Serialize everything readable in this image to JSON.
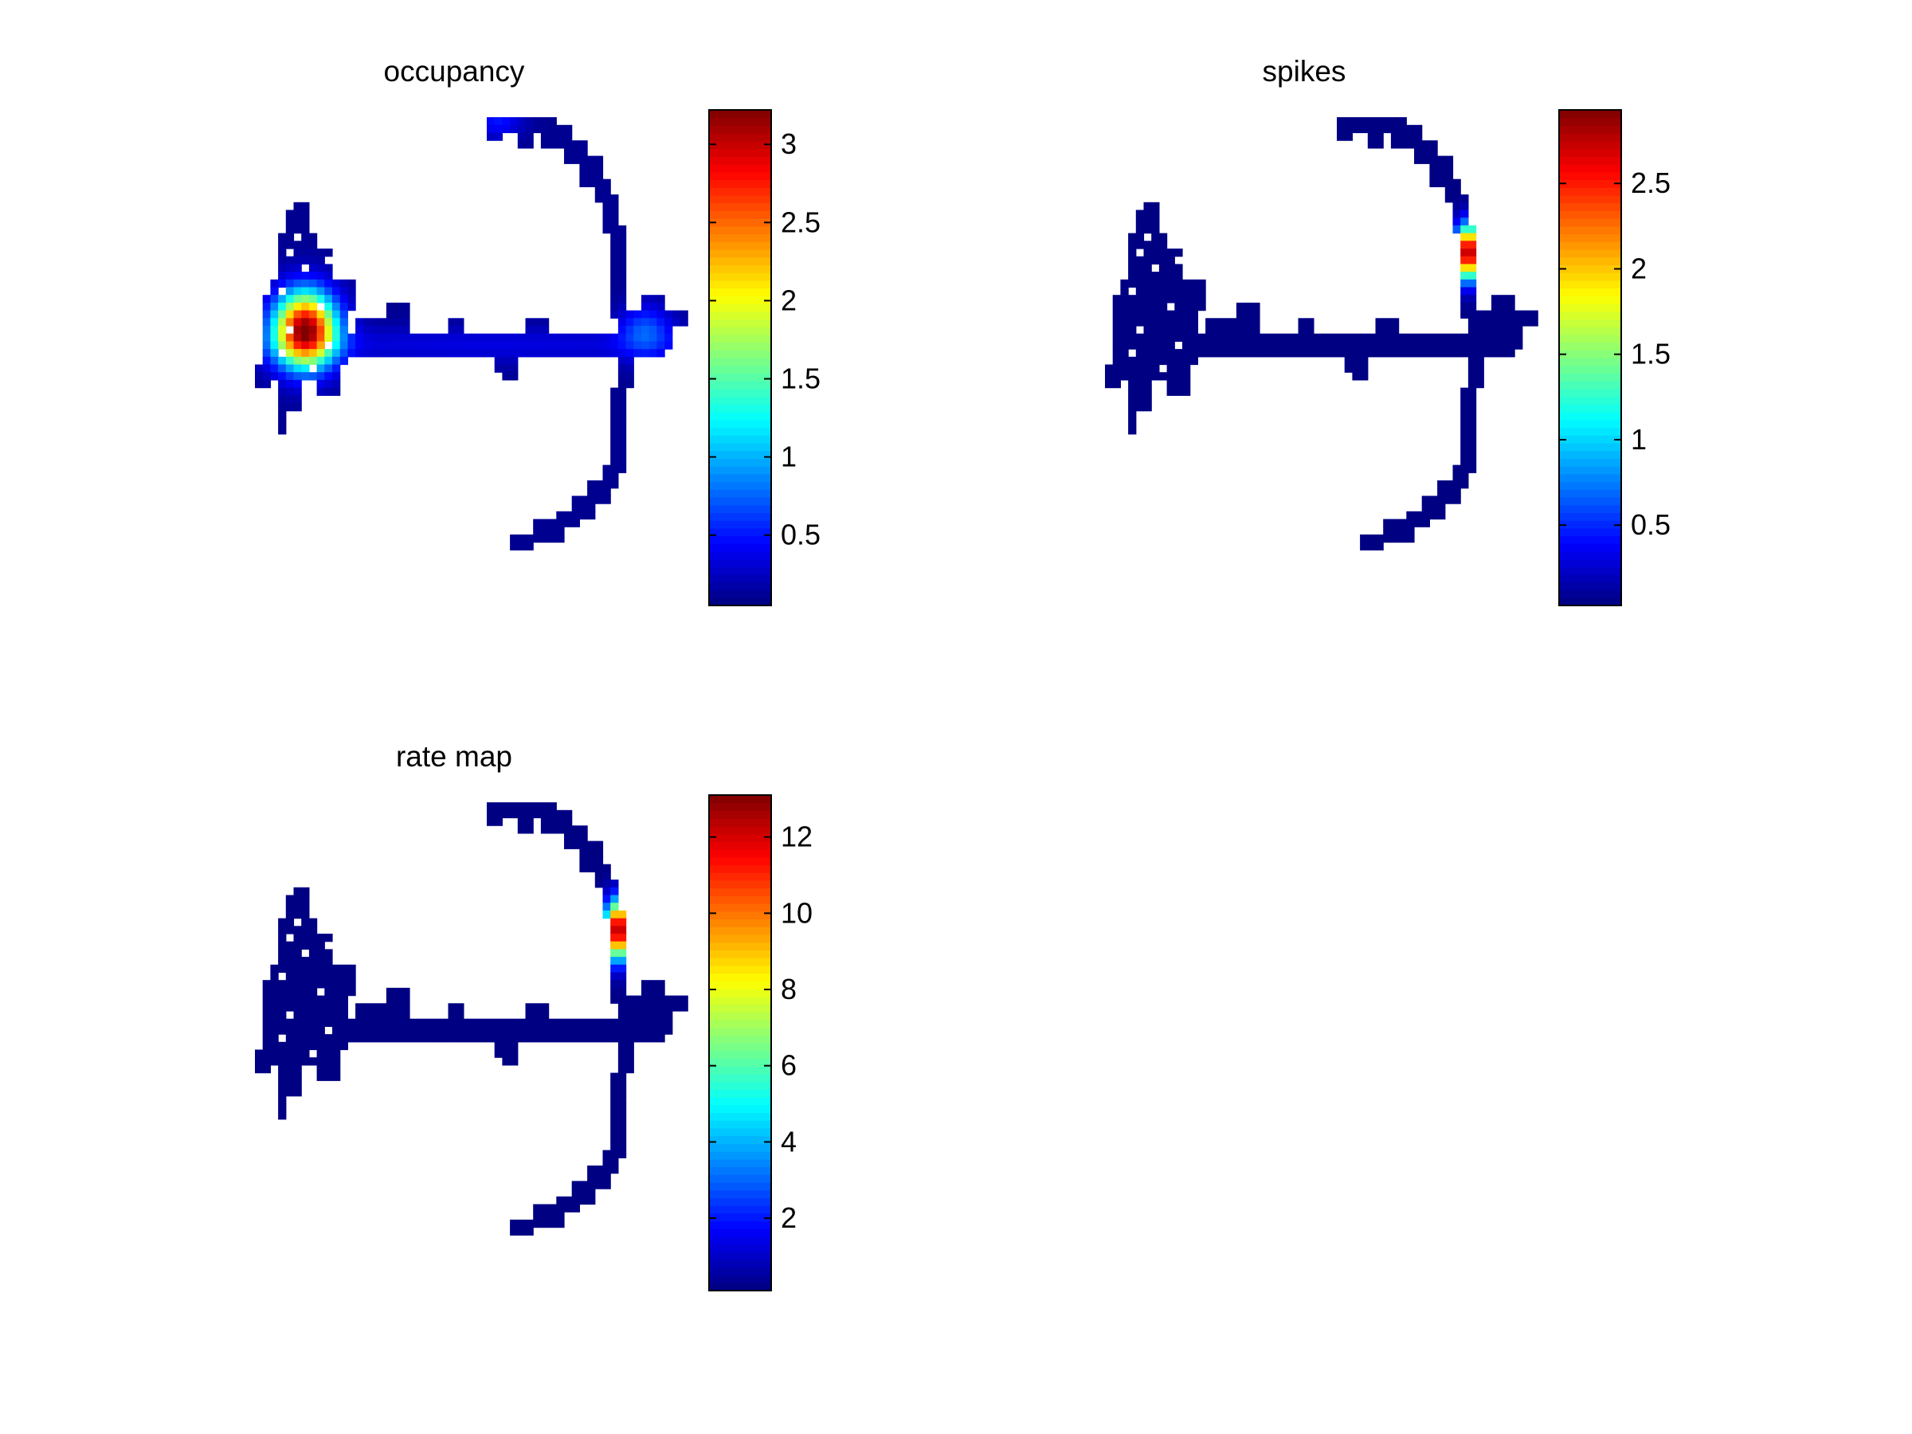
{
  "chart_data": [
    {
      "type": "heatmap",
      "title": "occupancy",
      "colormap": "jet",
      "axes_visible": false,
      "colorbar": {
        "min": 0.05,
        "max": 3.22,
        "ticks": [
          0.5,
          1,
          1.5,
          2,
          2.5,
          3
        ]
      },
      "peaks": [
        {
          "region": "left-chamber",
          "value": 3.2
        },
        {
          "region": "arm-junction",
          "value": 0.7
        },
        {
          "region": "top-arm-tip",
          "value": 0.9
        }
      ]
    },
    {
      "type": "heatmap",
      "title": "spikes",
      "colormap": "jet",
      "axes_visible": false,
      "colorbar": {
        "min": 0.03,
        "max": 2.93,
        "ticks": [
          0.5,
          1,
          1.5,
          2,
          2.5
        ]
      },
      "peaks": [
        {
          "region": "right-arm-upper",
          "value": 2.9
        }
      ]
    },
    {
      "type": "heatmap",
      "title": "rate map",
      "colormap": "jet",
      "axes_visible": false,
      "colorbar": {
        "min": 0.1,
        "max": 13.1,
        "ticks": [
          2,
          4,
          6,
          8,
          10,
          12
        ]
      },
      "peaks": [
        {
          "region": "right-arm-upper",
          "value": 13
        }
      ]
    }
  ]
}
